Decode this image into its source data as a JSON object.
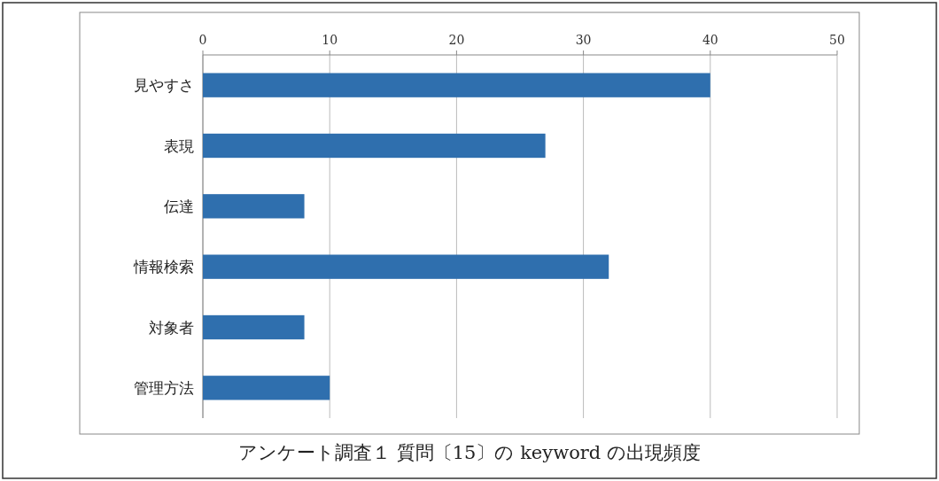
{
  "chart_data": {
    "type": "bar",
    "orientation": "horizontal",
    "title": "アンケート調査１ 質問〔15〕の keyword の出現頻度",
    "categories": [
      "見やすさ",
      "表現",
      "伝達",
      "情報検索",
      "対象者",
      "管理方法"
    ],
    "values": [
      40,
      27,
      8,
      32,
      8,
      10
    ],
    "color": "#2f6fae",
    "xlim": [
      0,
      50
    ],
    "xticks": [
      0,
      10,
      20,
      30,
      40,
      50
    ],
    "grid": "x"
  }
}
